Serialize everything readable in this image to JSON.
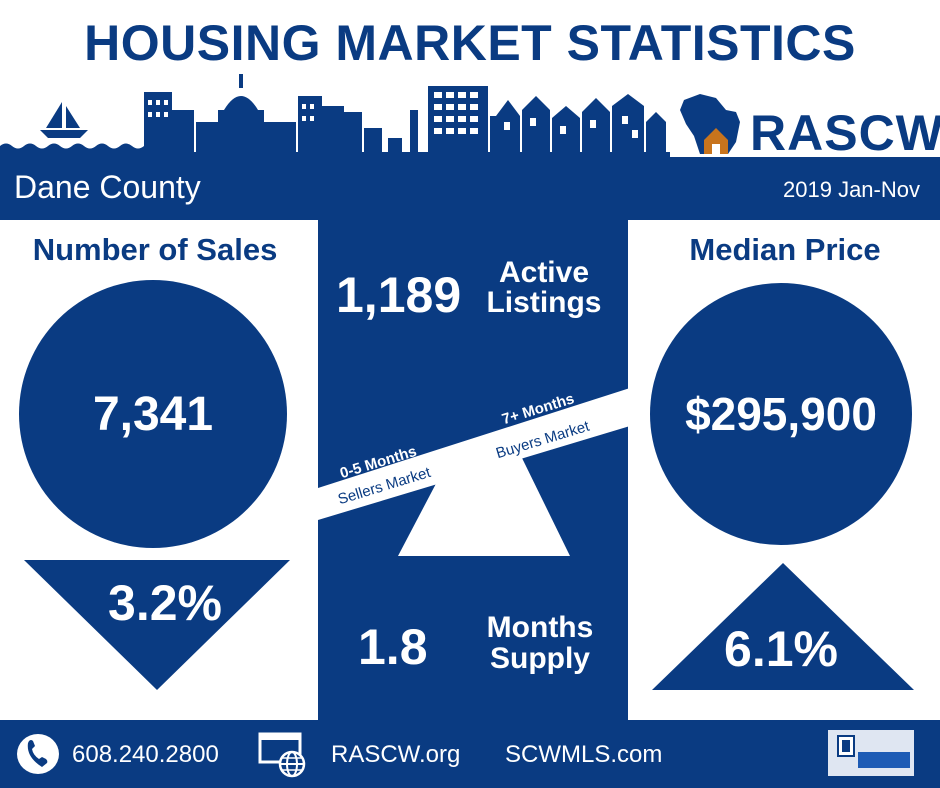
{
  "header": {
    "title": "HOUSING MARKET STATISTICS",
    "brand": "RASCW"
  },
  "topbar": {
    "region": "Dane County",
    "period": "2019 Jan-Nov"
  },
  "sales": {
    "title": "Number of Sales",
    "value": "7,341",
    "change": "3.2%"
  },
  "listings": {
    "value": "1,189",
    "label_line1": "Active",
    "label_line2": "Listings"
  },
  "scale": {
    "sellers_months": "0-5 Months",
    "sellers_label": "Sellers Market",
    "buyers_months": "7+ Months",
    "buyers_label": "Buyers Market"
  },
  "supply": {
    "value": "1.8",
    "label_line1": "Months",
    "label_line2": "Supply"
  },
  "price": {
    "title": "Median Price",
    "value": "$295,900",
    "change": "6.1%"
  },
  "footer": {
    "phone": "608.240.2800",
    "site1": "RASCW.org",
    "site2": "SCWMLS.com"
  },
  "icons": [
    "phone-icon",
    "web-globe-icon",
    "realtor-mls-logo",
    "wisconsin-house-logo"
  ],
  "colors": {
    "primary": "#0a3b82",
    "background": "#ffffff"
  }
}
